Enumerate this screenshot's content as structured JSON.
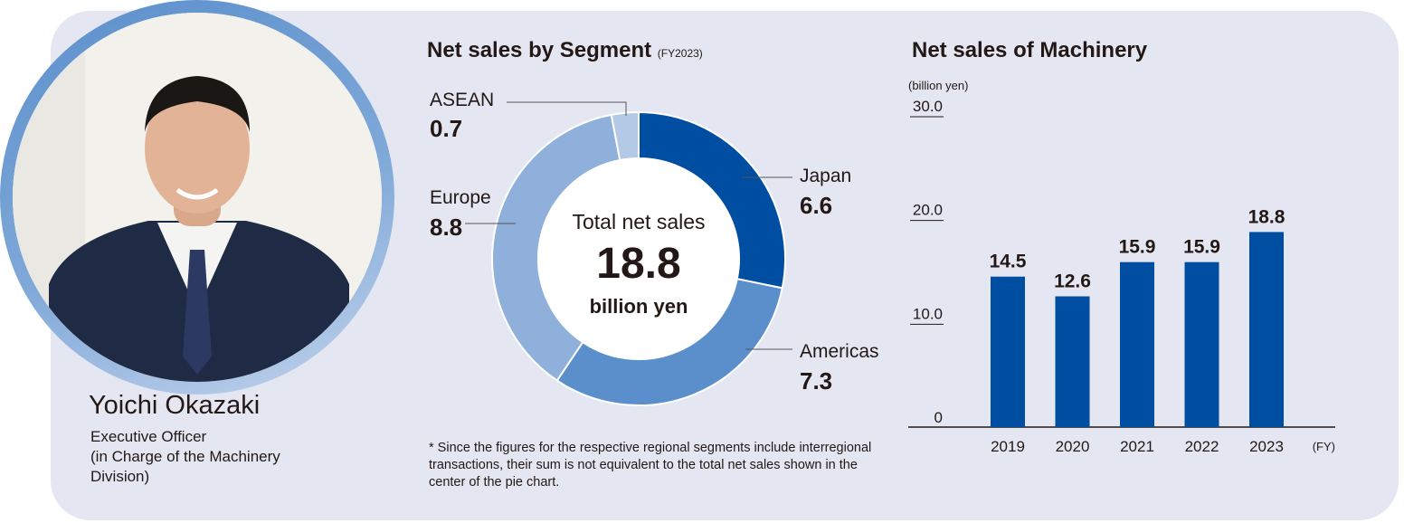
{
  "person": {
    "name": "Yoichi Okazaki",
    "title_line1": "Executive Officer",
    "title_line2": "(in Charge of the Machinery",
    "title_line3": "Division)"
  },
  "colors": {
    "panel_bg": "#e4e6f2",
    "japan": "#004ea2",
    "americas": "#5b8fcc",
    "europe": "#8fb0da",
    "asean": "#b3c9e6",
    "bars": "#004ea2"
  },
  "chart_data": [
    {
      "type": "pie",
      "variant": "donut",
      "title": "Net sales by Segment",
      "subtitle": "(FY2023)",
      "center_line1": "Total net sales",
      "center_value": "18.8",
      "center_unit": "billion yen",
      "slices": [
        {
          "label": "Japan",
          "value": 6.6,
          "value_text": "6.6"
        },
        {
          "label": "Americas",
          "value": 7.3,
          "value_text": "7.3"
        },
        {
          "label": "Europe",
          "value": 8.8,
          "value_text": "8.8"
        },
        {
          "label": "ASEAN",
          "value": 0.7,
          "value_text": "0.7"
        }
      ]
    },
    {
      "type": "bar",
      "title": "Net sales of Machinery",
      "ylabel": "(billion yen)",
      "xlabel": "(FY)",
      "ylim": [
        0,
        30
      ],
      "yticks": [
        "0",
        "10.0",
        "20.0",
        "30.0"
      ],
      "categories": [
        "2019",
        "2020",
        "2021",
        "2022",
        "2023"
      ],
      "values": [
        14.5,
        12.6,
        15.9,
        15.9,
        18.8
      ],
      "value_labels": [
        "14.5",
        "12.6",
        "15.9",
        "15.9",
        "18.8"
      ]
    }
  ],
  "footnote": "* Since the figures for the respective regional segments include interregional transactions, their sum is not equivalent to the total net sales shown in the center of the pie chart."
}
